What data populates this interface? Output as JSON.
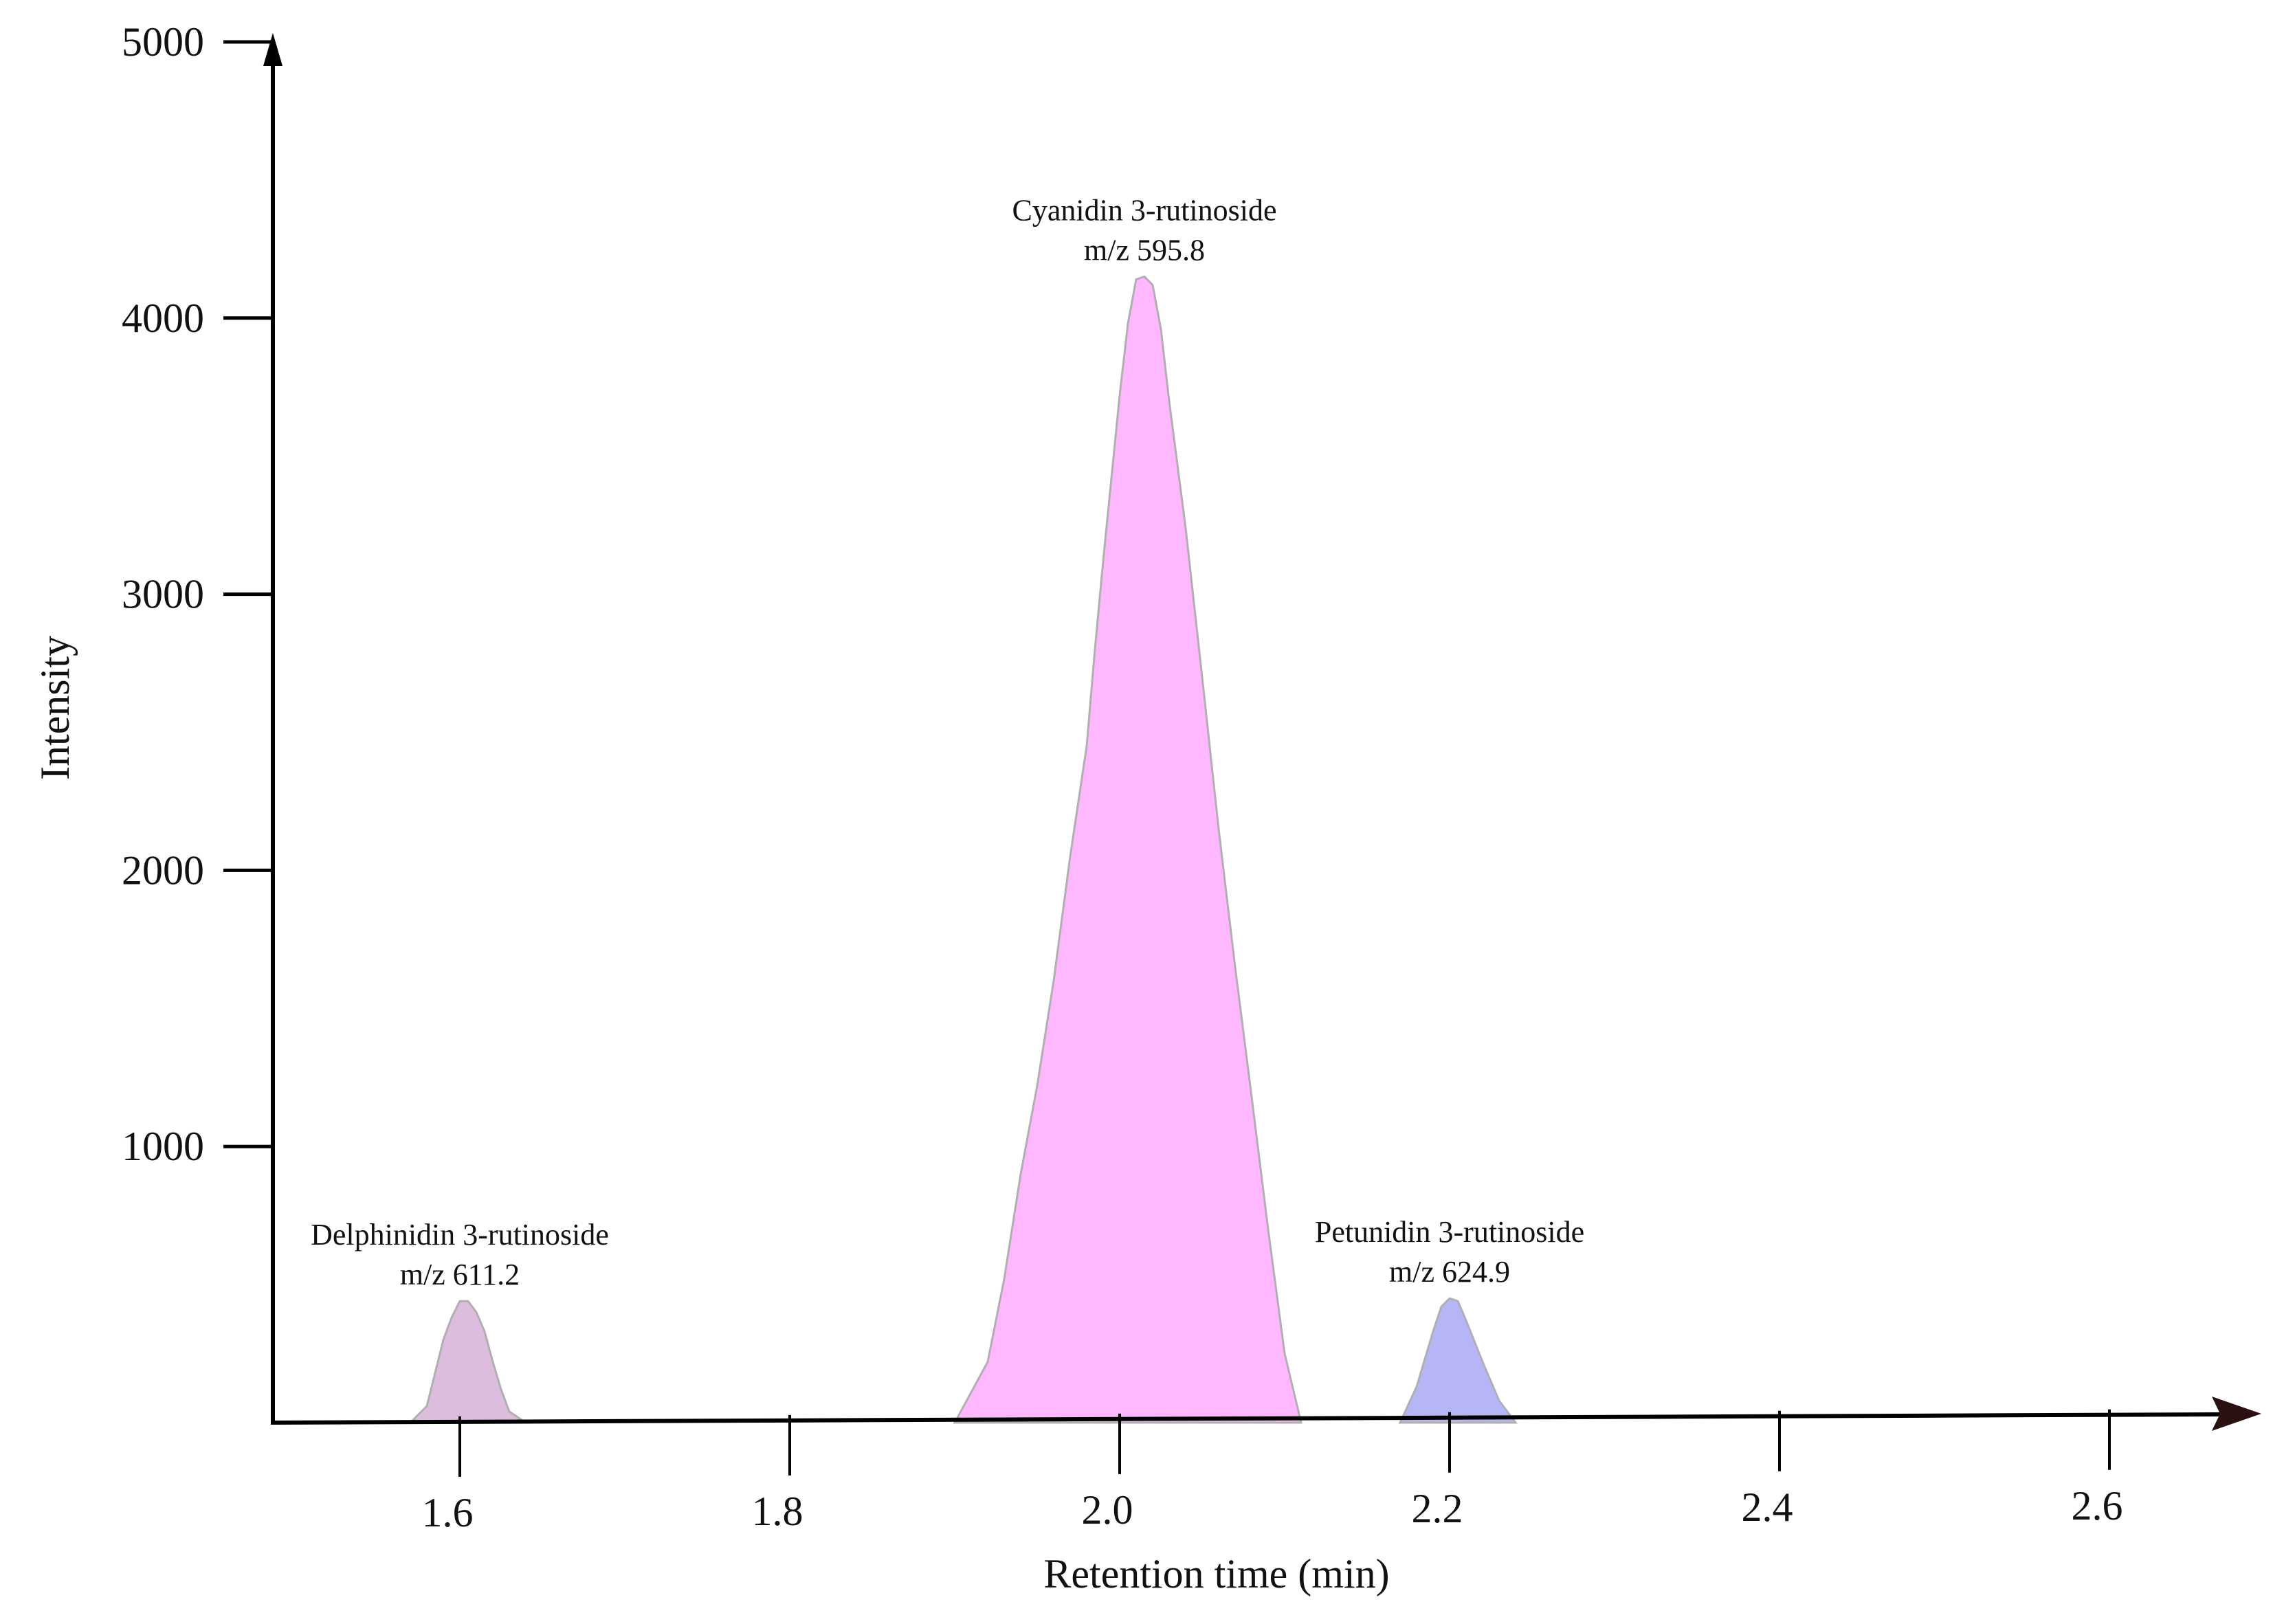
{
  "chart_data": {
    "type": "area",
    "title": "",
    "xlabel": "Retention time (min)",
    "ylabel": "Intensity",
    "xlim": [
      1.5,
      2.72
    ],
    "ylim": [
      0,
      5150
    ],
    "x_ticks": [
      "1.6",
      "1.8",
      "2.0",
      "2.2",
      "2.4",
      "2.6"
    ],
    "y_ticks": [
      "1000",
      "2000",
      "3000",
      "4000",
      "5000"
    ],
    "grid": false,
    "legend": "none",
    "peaks": [
      {
        "name_line1": "Delphinidin 3-rutinoside",
        "name_line2": "m/z 611.2",
        "color": "#ddbddd",
        "points": [
          [
            1.57,
            0
          ],
          [
            1.58,
            60
          ],
          [
            1.585,
            180
          ],
          [
            1.59,
            300
          ],
          [
            1.595,
            380
          ],
          [
            1.6,
            440
          ],
          [
            1.605,
            440
          ],
          [
            1.61,
            400
          ],
          [
            1.615,
            330
          ],
          [
            1.62,
            220
          ],
          [
            1.625,
            120
          ],
          [
            1.63,
            40
          ],
          [
            1.64,
            0
          ]
        ]
      },
      {
        "name_line1": "Cyanidin 3-rutinoside",
        "name_line2": "m/z 595.8",
        "color": "#ffb8ff",
        "points": [
          [
            1.9,
            0
          ],
          [
            1.92,
            220
          ],
          [
            1.93,
            520
          ],
          [
            1.94,
            900
          ],
          [
            1.95,
            1220
          ],
          [
            1.96,
            1600
          ],
          [
            1.97,
            2050
          ],
          [
            1.98,
            2450
          ],
          [
            1.985,
            2800
          ],
          [
            1.99,
            3120
          ],
          [
            1.995,
            3420
          ],
          [
            2.0,
            3720
          ],
          [
            2.005,
            3980
          ],
          [
            2.01,
            4140
          ],
          [
            2.015,
            4150
          ],
          [
            2.02,
            4120
          ],
          [
            2.025,
            3960
          ],
          [
            2.03,
            3700
          ],
          [
            2.04,
            3240
          ],
          [
            2.05,
            2700
          ],
          [
            2.06,
            2150
          ],
          [
            2.07,
            1650
          ],
          [
            2.08,
            1180
          ],
          [
            2.09,
            700
          ],
          [
            2.1,
            250
          ],
          [
            2.11,
            0
          ]
        ]
      },
      {
        "name_line1": "Petunidin 3-rutinoside",
        "name_line2": "m/z 624.9",
        "color": "#b6b6f7",
        "points": [
          [
            2.17,
            0
          ],
          [
            2.18,
            130
          ],
          [
            2.19,
            330
          ],
          [
            2.195,
            420
          ],
          [
            2.2,
            450
          ],
          [
            2.205,
            440
          ],
          [
            2.21,
            370
          ],
          [
            2.22,
            220
          ],
          [
            2.23,
            80
          ],
          [
            2.24,
            0
          ]
        ]
      }
    ]
  }
}
